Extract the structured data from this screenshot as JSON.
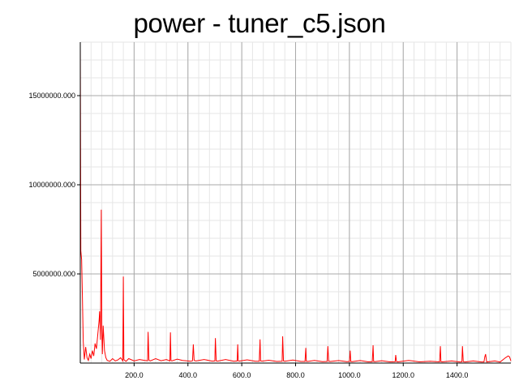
{
  "chart_data": {
    "type": "line",
    "title": "power - tuner_c5.json",
    "xlabel": "",
    "ylabel": "",
    "xlim": [
      0,
      1600
    ],
    "ylim": [
      0,
      18000000
    ],
    "grid": true,
    "legend": "none",
    "x_ticks": [
      200,
      400,
      600,
      800,
      1000,
      1200,
      1400
    ],
    "x_tick_labels": [
      "200.0",
      "400.0",
      "600.0",
      "800.0",
      "1000.0",
      "1200.0",
      "1400.0"
    ],
    "y_ticks": [
      5000000,
      10000000,
      15000000
    ],
    "y_tick_labels": [
      "5000000.000",
      "10000000.000",
      "15000000.000"
    ],
    "series": [
      {
        "color": "#ff0000",
        "x": [
          0,
          2,
          5,
          8,
          11,
          15,
          20,
          25,
          30,
          35,
          40,
          45,
          50,
          55,
          60,
          65,
          70,
          72,
          75,
          78,
          80,
          82,
          85,
          90,
          95,
          100,
          110,
          120,
          130,
          140,
          150,
          158,
          160,
          162,
          165,
          170,
          180,
          200,
          220,
          240,
          250,
          252,
          255,
          260,
          280,
          300,
          320,
          333,
          335,
          337,
          340,
          360,
          380,
          400,
          410,
          417,
          420,
          423,
          430,
          460,
          490,
          500,
          502,
          505,
          510,
          540,
          570,
          583,
          585,
          587,
          590,
          620,
          650,
          665,
          668,
          670,
          675,
          700,
          730,
          750,
          752,
          755,
          760,
          790,
          820,
          835,
          838,
          840,
          845,
          870,
          900,
          917,
          920,
          923,
          930,
          960,
          990,
          1000,
          1003,
          1005,
          1010,
          1040,
          1070,
          1085,
          1088,
          1090,
          1095,
          1120,
          1150,
          1170,
          1172,
          1175,
          1180,
          1220,
          1260,
          1300,
          1335,
          1338,
          1340,
          1345,
          1380,
          1410,
          1418,
          1420,
          1423,
          1430,
          1460,
          1490,
          1500,
          1503,
          1506,
          1510,
          1540,
          1560,
          1580,
          1590,
          1595,
          1600
        ],
        "y": [
          18000000,
          6300000,
          5800000,
          3600000,
          1200000,
          200000,
          900000,
          300000,
          150000,
          500000,
          250000,
          700000,
          400000,
          1100000,
          800000,
          1600000,
          2400000,
          2900000,
          1300000,
          8600000,
          2000000,
          500000,
          2100000,
          700000,
          300000,
          150000,
          100000,
          250000,
          120000,
          180000,
          300000,
          120000,
          4850000,
          200000,
          150000,
          100000,
          250000,
          120000,
          200000,
          150000,
          130000,
          1750000,
          160000,
          120000,
          250000,
          130000,
          200000,
          120000,
          1720000,
          150000,
          120000,
          220000,
          150000,
          120000,
          100000,
          130000,
          1050000,
          150000,
          120000,
          200000,
          110000,
          120000,
          1400000,
          120000,
          110000,
          200000,
          100000,
          120000,
          1050000,
          130000,
          110000,
          180000,
          100000,
          100000,
          1330000,
          120000,
          110000,
          160000,
          90000,
          100000,
          1500000,
          120000,
          100000,
          170000,
          90000,
          90000,
          850000,
          100000,
          90000,
          150000,
          80000,
          90000,
          950000,
          100000,
          90000,
          140000,
          80000,
          90000,
          700000,
          90000,
          80000,
          140000,
          70000,
          80000,
          1000000,
          90000,
          80000,
          130000,
          70000,
          80000,
          450000,
          80000,
          70000,
          150000,
          70000,
          100000,
          70000,
          950000,
          80000,
          70000,
          120000,
          60000,
          70000,
          950000,
          80000,
          60000,
          120000,
          60000,
          60000,
          350000,
          500000,
          60000,
          120000,
          60000,
          300000,
          400000,
          350000,
          120000
        ]
      }
    ]
  }
}
